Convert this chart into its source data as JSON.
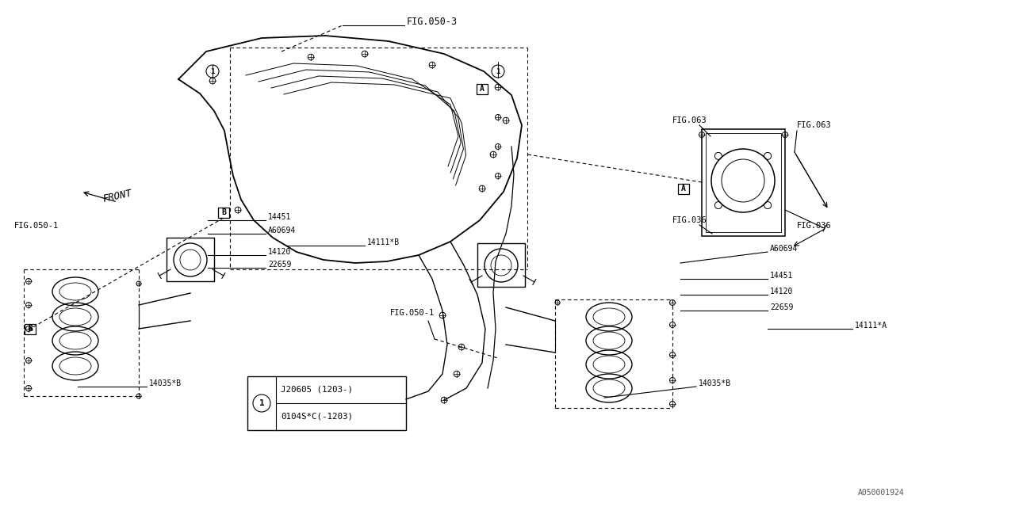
{
  "bg_color": "#ffffff",
  "line_color": "#000000",
  "fig_width": 12.8,
  "fig_height": 6.4,
  "labels": {
    "fig050_3": "FIG.050-3",
    "fig050_1_top": "FIG.050-1",
    "fig050_1_bot": "FIG.050-1",
    "fig063_top": "FIG.063",
    "fig063_right": "FIG.063",
    "fig036_top": "FIG.036",
    "fig036_bot": "FIG.036",
    "front": "FRONT",
    "part_14451_left": "14451",
    "part_A60694_left": "A60694",
    "part_14111B": "14111*B",
    "part_14120_left": "14120",
    "part_22659_left": "22659",
    "part_14035B": "14035*B",
    "part_A60694_right": "A60694",
    "part_14451_right": "14451",
    "part_14120_right": "14120",
    "part_22659_right": "22659",
    "part_14111A": "14111*A",
    "part_14035B_right": "14035*B",
    "legend_line1": "0104S*C(-1203)",
    "legend_line2": "J20605 (1203-)",
    "watermark": "A050001924"
  }
}
